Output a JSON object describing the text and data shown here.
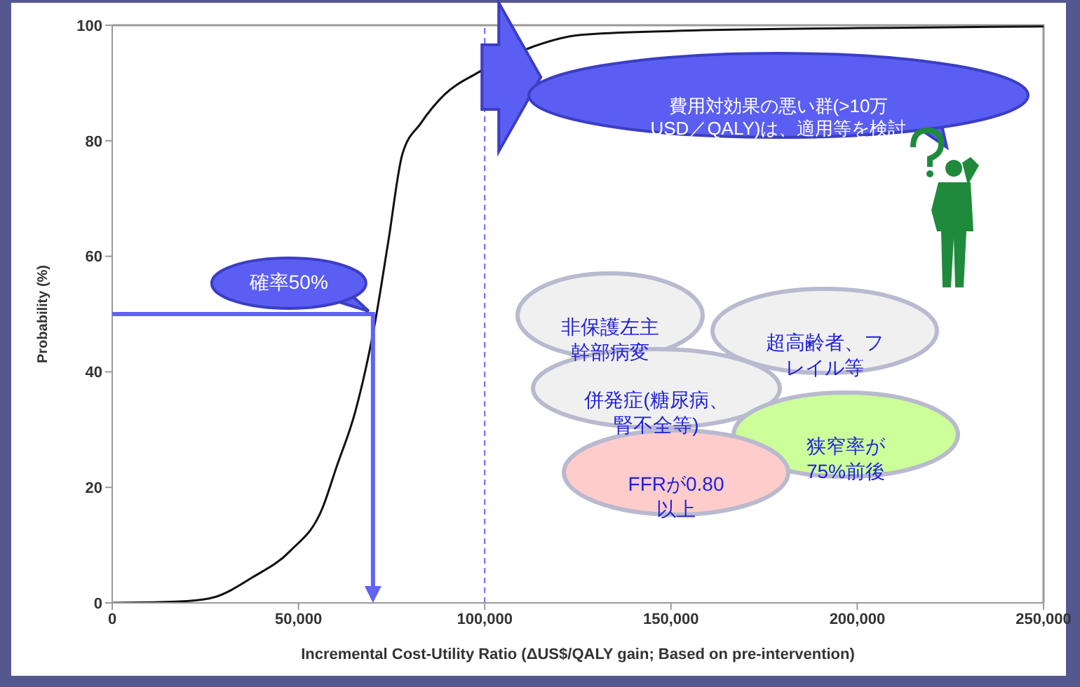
{
  "chart_data": {
    "type": "line",
    "xlabel": "Incremental Cost-Utility Ratio (ΔUS$/QALY gain; Based on pre-intervention)",
    "ylabel": "Probability (%)",
    "x": [
      0,
      10000,
      20000,
      27500,
      37600,
      47800,
      56500,
      60200,
      65200,
      70400,
      74100,
      77900,
      82800,
      89200,
      97900,
      113000,
      125400,
      150600,
      200000,
      250000
    ],
    "values": [
      0,
      0.1,
      0.3,
      1,
      4.4,
      9,
      16.5,
      23.5,
      33,
      48,
      62.5,
      77.7,
      83,
      88,
      91.7,
      96.3,
      98.3,
      99,
      99.5,
      99.8
    ],
    "color": "#111111",
    "marker": "none",
    "line_style": "solid",
    "grid": false,
    "xlim": [
      0,
      250000
    ],
    "ylim": [
      0,
      100
    ],
    "xticks": [
      0,
      {
        "value": 50000,
        "label": "50,000"
      },
      {
        "value": 100000,
        "label": "100,000"
      },
      {
        "value": 150000,
        "label": "150,000"
      },
      {
        "value": 200000,
        "label": "200,000"
      },
      {
        "value": 250000,
        "label": "250,000"
      }
    ],
    "yticks": [
      0,
      20,
      40,
      60,
      80,
      100
    ],
    "ref_lines": [
      {
        "axis": "x",
        "value": 100000,
        "color": "#6666ff",
        "line_style": "dashed"
      }
    ],
    "annotations": [
      {
        "text": "確率50%",
        "x": 70000,
        "y": 50
      },
      "費用対効果の悪い群(>10万USD／QALY)は、適用等を検討",
      "非保護左主幹部病変",
      "超高齢者、フレイル等",
      "併発症(糖尿病、腎不全等)",
      "狭窄率が75%前後",
      "FFRが0.80以上"
    ]
  }
}
